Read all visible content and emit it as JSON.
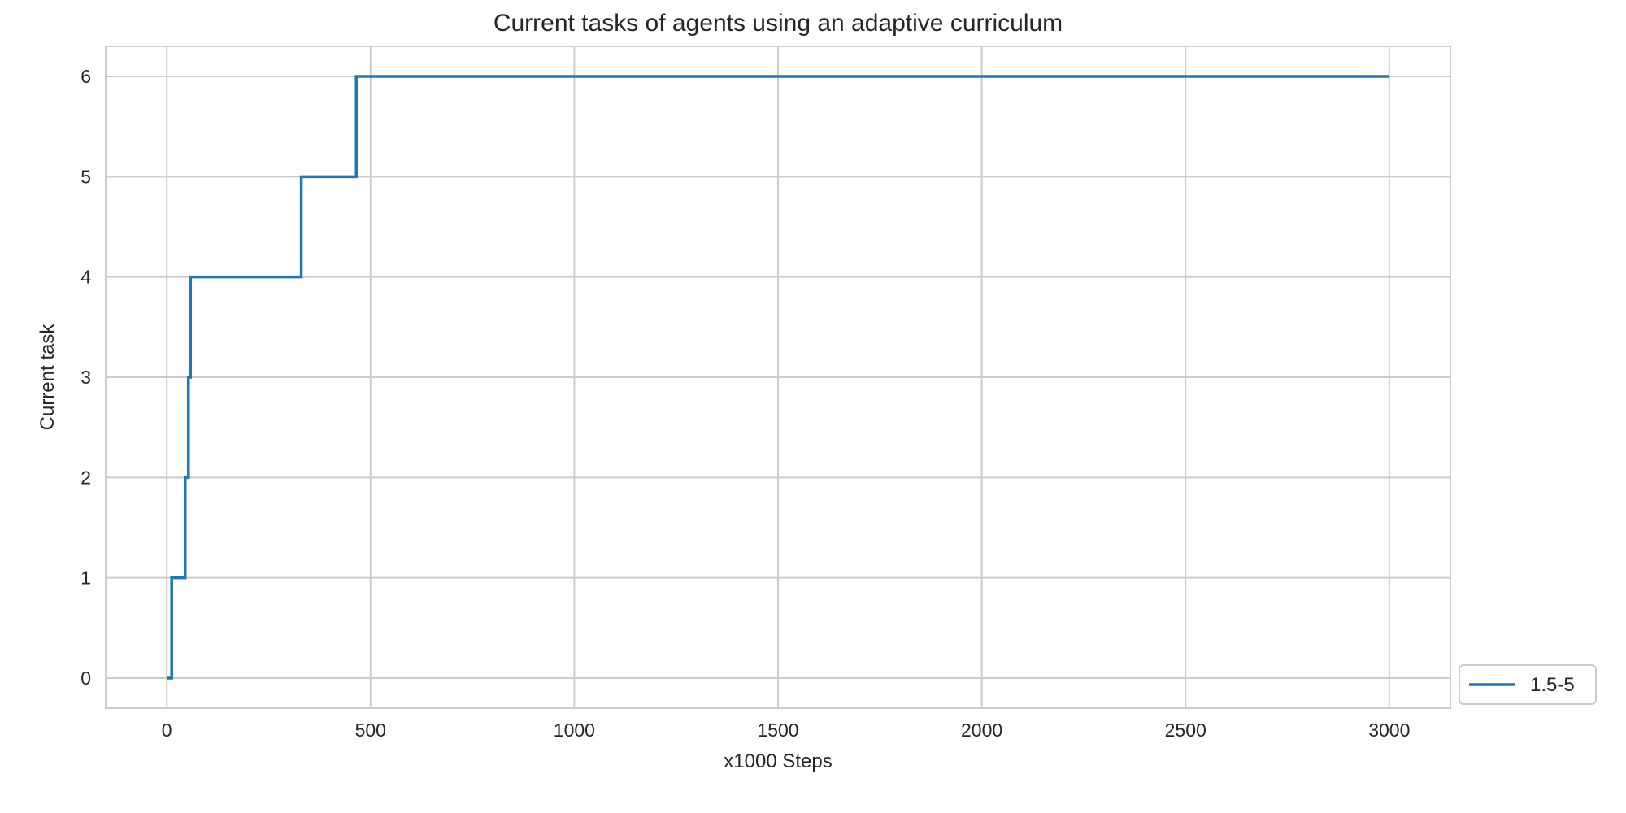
{
  "chart_data": {
    "type": "line",
    "title": "Current tasks of agents using an adaptive curriculum",
    "xlabel": "x1000 Steps",
    "ylabel": "Current task",
    "xlim": [
      -150,
      3150
    ],
    "ylim": [
      -0.3,
      6.3
    ],
    "x_ticks": [
      0,
      500,
      1000,
      1500,
      2000,
      2500,
      3000
    ],
    "y_ticks": [
      0,
      1,
      2,
      3,
      4,
      5,
      6
    ],
    "grid": true,
    "legend_position": "outside-lower-right",
    "series": [
      {
        "name": "1.5-5",
        "color": "#1f77b4",
        "step": "post",
        "x": [
          0,
          12,
          45,
          53,
          58,
          330,
          465,
          3000
        ],
        "y": [
          0,
          1,
          2,
          3,
          4,
          5,
          6,
          6
        ]
      }
    ]
  }
}
